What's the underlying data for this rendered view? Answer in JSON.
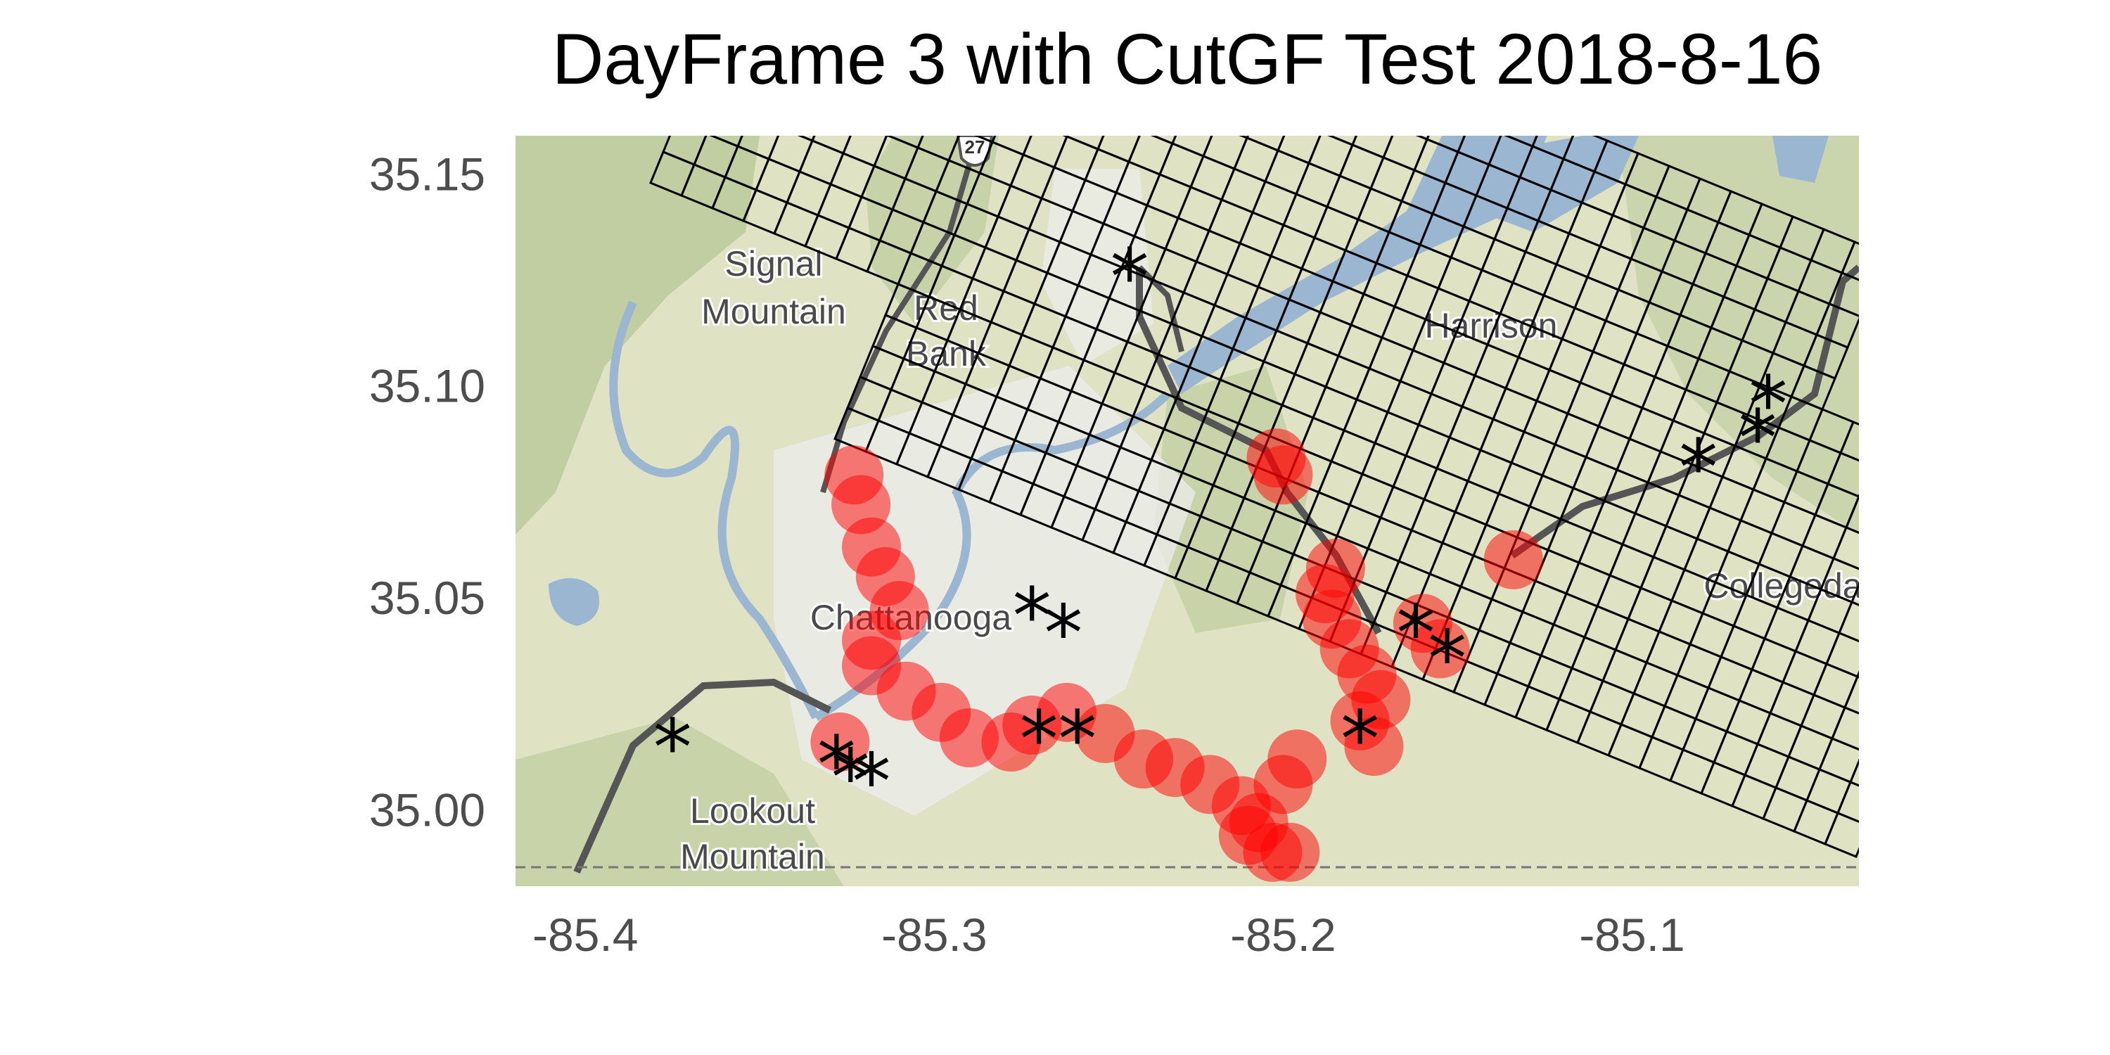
{
  "title": "DayFrame 3 with CutGF Test 2018-8-16",
  "axes": {
    "x_ticks": [
      -85.4,
      -85.3,
      -85.2,
      -85.1
    ],
    "x_tick_labels": [
      "-85.4",
      "-85.3",
      "-85.2",
      "-85.1"
    ],
    "y_ticks": [
      35.0,
      35.05,
      35.1,
      35.15
    ],
    "y_tick_labels": [
      "35.00",
      "35.05",
      "35.10",
      "35.15"
    ],
    "xlim": [
      -85.42,
      -85.035
    ],
    "ylim": [
      34.982,
      35.159
    ]
  },
  "basemap": {
    "place_labels": [
      "Signal",
      "Mountain",
      "Red",
      "Bank",
      "Harrison",
      "Chattanooga",
      "Collegeda",
      "Lookout",
      "Mountain"
    ],
    "route_shield": "27",
    "colors": {
      "land": "#dfe3c4",
      "forest": "#b7c796",
      "urban": "#ececec",
      "water": "#9bb6d1",
      "road": "#555555"
    }
  },
  "colors": {
    "circle_fill": "#ff0000",
    "grid_line": "#000000",
    "star": "#000000"
  },
  "chart_data": {
    "type": "scatter",
    "title": "DayFrame 3 with CutGF Test 2018-8-16",
    "xlabel": "",
    "ylabel": "",
    "xlim": [
      -85.42,
      -85.035
    ],
    "ylim": [
      34.982,
      35.159
    ],
    "series": [
      {
        "marker": "red-circle",
        "points": [
          [
            -85.323,
            35.079
          ],
          [
            -85.321,
            35.072
          ],
          [
            -85.318,
            35.062
          ],
          [
            -85.314,
            35.055
          ],
          [
            -85.31,
            35.047
          ],
          [
            -85.318,
            35.04
          ],
          [
            -85.318,
            35.034
          ],
          [
            -85.308,
            35.028
          ],
          [
            -85.298,
            35.023
          ],
          [
            -85.29,
            35.017
          ],
          [
            -85.278,
            35.016
          ],
          [
            -85.272,
            35.02
          ],
          [
            -85.262,
            35.023
          ],
          [
            -85.251,
            35.018
          ],
          [
            -85.24,
            35.012
          ],
          [
            -85.231,
            35.01
          ],
          [
            -85.221,
            35.006
          ],
          [
            -85.212,
            35.001
          ],
          [
            -85.207,
            34.997
          ],
          [
            -85.21,
            34.994
          ],
          [
            -85.203,
            34.99
          ],
          [
            -85.198,
            34.99
          ],
          [
            -85.2,
            35.006
          ],
          [
            -85.196,
            35.012
          ],
          [
            -85.174,
            35.015
          ],
          [
            -85.172,
            35.026
          ],
          [
            -85.176,
            35.032
          ],
          [
            -85.181,
            35.038
          ],
          [
            -85.186,
            35.045
          ],
          [
            -85.188,
            35.051
          ],
          [
            -85.185,
            35.057
          ],
          [
            -85.2,
            35.079
          ],
          [
            -85.202,
            35.083
          ],
          [
            -85.16,
            35.044
          ],
          [
            -85.155,
            35.038
          ],
          [
            -85.134,
            35.059
          ],
          [
            -85.327,
            35.016
          ],
          [
            -85.178,
            35.021
          ]
        ]
      },
      {
        "marker": "asterisk",
        "points": [
          [
            -85.244,
            35.126
          ],
          [
            -85.061,
            35.096
          ],
          [
            -85.064,
            35.088
          ],
          [
            -85.081,
            35.081
          ],
          [
            -85.272,
            35.046
          ],
          [
            -85.263,
            35.042
          ],
          [
            -85.162,
            35.042
          ],
          [
            -85.153,
            35.036
          ],
          [
            -85.375,
            35.015
          ],
          [
            -85.328,
            35.011
          ],
          [
            -85.324,
            35.008
          ],
          [
            -85.318,
            35.007
          ],
          [
            -85.27,
            35.017
          ],
          [
            -85.259,
            35.017
          ],
          [
            -85.178,
            35.017
          ]
        ]
      }
    ]
  }
}
